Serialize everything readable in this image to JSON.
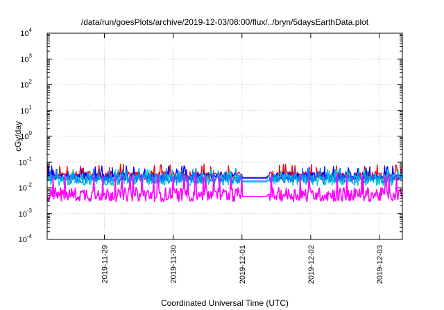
{
  "chart_data": {
    "type": "line",
    "title": "/data/run/goesPlots/archive/2019-12-03/08:00/flux/../bryn/5daysEarthData.plot",
    "xlabel": "Coordinated Universal Time (UTC)",
    "ylabel": "cGy/day",
    "y_scale": "log",
    "ylim": [
      0.0001,
      10000
    ],
    "y_ticks": [
      {
        "value": 10000,
        "base": "10",
        "exp": "4"
      },
      {
        "value": 1000,
        "base": "10",
        "exp": "3"
      },
      {
        "value": 100,
        "base": "10",
        "exp": "2"
      },
      {
        "value": 10,
        "base": "10",
        "exp": "1"
      },
      {
        "value": 1,
        "base": "10",
        "exp": "0"
      },
      {
        "value": 0.1,
        "base": "10",
        "exp": "-1"
      },
      {
        "value": 0.01,
        "base": "10",
        "exp": "-2"
      },
      {
        "value": 0.001,
        "base": "10",
        "exp": "-3"
      },
      {
        "value": 0.0001,
        "base": "10",
        "exp": "-4"
      }
    ],
    "x_range_days": [
      "2019-11-28T04:00",
      "2019-12-03T08:00"
    ],
    "x_ticks": [
      {
        "value": "2019-11-29",
        "label": "2019-11-29"
      },
      {
        "value": "2019-11-30",
        "label": "2019-11-30"
      },
      {
        "value": "2019-12-01",
        "label": "2019-12-01"
      },
      {
        "value": "2019-12-02",
        "label": "2019-12-02"
      },
      {
        "value": "2019-12-03",
        "label": "2019-12-03"
      }
    ],
    "data_gap": [
      "2019-12-01T00:00",
      "2019-12-01T09:30"
    ],
    "grid": true,
    "series": [
      {
        "color": "#ff0000",
        "base": 0.03,
        "spread": 0.35,
        "spike": 0.07
      },
      {
        "color": "#0000ff",
        "base": 0.028,
        "spread": 0.3,
        "spike": 0.06
      },
      {
        "color": "#00cccc",
        "base": 0.02,
        "spread": 0.45,
        "spike": 0.045
      },
      {
        "color": "#0080ff",
        "base": 0.022,
        "spread": 0.35,
        "spike": 0.05
      },
      {
        "color": "#ff00ff",
        "base": 0.0055,
        "spread": 0.55,
        "spike": 0.03
      }
    ]
  }
}
